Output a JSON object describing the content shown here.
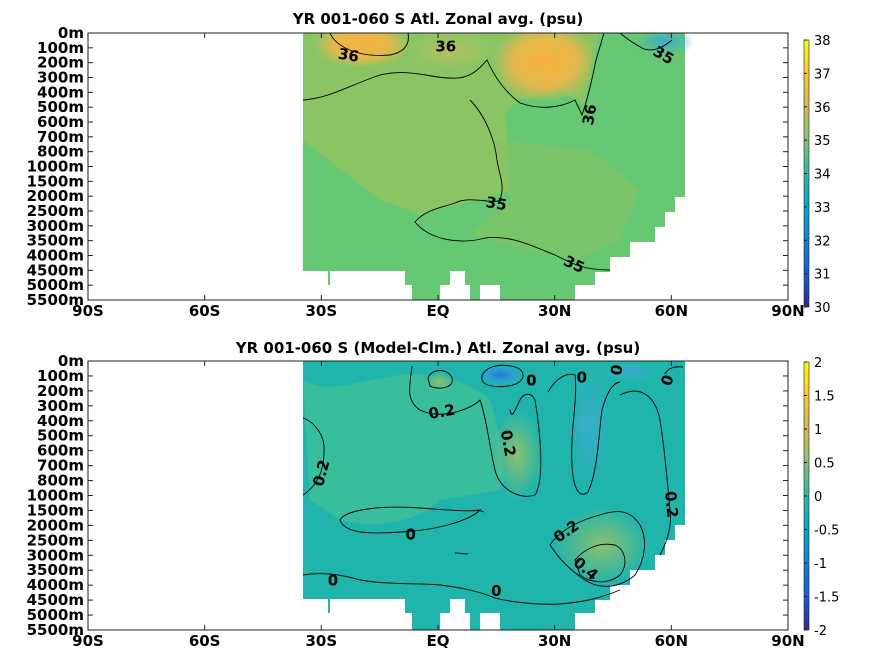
{
  "chart_data": [
    {
      "type": "heatmap",
      "title": "YR 001-060 S Atl. Zonal avg. (psu)",
      "x_tick_labels": [
        "90S",
        "60S",
        "30S",
        "EQ",
        "30N",
        "60N",
        "90N"
      ],
      "x_tick_values": [
        -90,
        -60,
        -30,
        0,
        30,
        60,
        90
      ],
      "xlim": [
        -90,
        90
      ],
      "y_tick_labels": [
        "0m",
        "100m",
        "200m",
        "300m",
        "400m",
        "500m",
        "600m",
        "700m",
        "800m",
        "1000m",
        "1500m",
        "2000m",
        "2500m",
        "3000m",
        "3500m",
        "4000m",
        "4500m",
        "5000m",
        "5500m"
      ],
      "colorbar": {
        "min": 30,
        "max": 38,
        "ticks": [
          "30",
          "31",
          "32",
          "33",
          "34",
          "35",
          "36",
          "37",
          "38"
        ]
      },
      "contour_labels": [
        {
          "text": "36",
          "lat": -23,
          "level": 1.5,
          "rot": 10
        },
        {
          "text": "36",
          "lat": 2,
          "level": 0.9,
          "rot": 0
        },
        {
          "text": "35",
          "lat": 58,
          "level": 1.5,
          "rot": 30
        },
        {
          "text": "36",
          "lat": 39,
          "level": 5.5,
          "rot": -80
        },
        {
          "text": "35",
          "lat": 15,
          "level": 11.5,
          "rot": 10
        },
        {
          "text": "35",
          "lat": 35,
          "level": 15.6,
          "rot": 25
        }
      ]
    },
    {
      "type": "heatmap",
      "title": "YR 001-060 S (Model-Clm.) Atl. Zonal avg. (psu)",
      "x_tick_labels": [
        "90S",
        "60S",
        "30S",
        "EQ",
        "30N",
        "60N",
        "90N"
      ],
      "x_tick_values": [
        -90,
        -60,
        -30,
        0,
        30,
        60,
        90
      ],
      "xlim": [
        -90,
        90
      ],
      "y_tick_labels": [
        "0m",
        "100m",
        "200m",
        "300m",
        "400m",
        "500m",
        "600m",
        "700m",
        "800m",
        "1000m",
        "1500m",
        "2000m",
        "2500m",
        "3000m",
        "3500m",
        "4000m",
        "4500m",
        "5000m",
        "5500m"
      ],
      "colorbar": {
        "min": -2,
        "max": 2,
        "ticks": [
          "2",
          "1.5",
          "1",
          "0.5",
          "0",
          "-0.5",
          "-1",
          "-1.5",
          "-2"
        ]
      },
      "contour_labels": [
        {
          "text": "0",
          "lat": 24,
          "level": 1.3,
          "rot": 0
        },
        {
          "text": "0",
          "lat": 37,
          "level": 1.1,
          "rot": 0
        },
        {
          "text": "0",
          "lat": 46,
          "level": 0.6,
          "rot": -80
        },
        {
          "text": "0",
          "lat": 59,
          "level": 1.3,
          "rot": -70
        },
        {
          "text": "0.2",
          "lat": 1,
          "level": 3.4,
          "rot": -10
        },
        {
          "text": "0.2",
          "lat": 18,
          "level": 5.5,
          "rot": 80
        },
        {
          "text": "0.2",
          "lat": -30,
          "level": 7.5,
          "rot": -75
        },
        {
          "text": "0.2",
          "lat": 60,
          "level": 9.6,
          "rot": 85
        },
        {
          "text": "0",
          "lat": -7,
          "level": 11.6,
          "rot": 0
        },
        {
          "text": "0.2",
          "lat": 33,
          "level": 11.4,
          "rot": -35
        },
        {
          "text": "0.4",
          "lat": 38,
          "level": 13.9,
          "rot": 40
        },
        {
          "text": "0",
          "lat": -27,
          "level": 14.7,
          "rot": 0
        },
        {
          "text": "0",
          "lat": 15,
          "level": 15.4,
          "rot": 0
        }
      ]
    }
  ]
}
